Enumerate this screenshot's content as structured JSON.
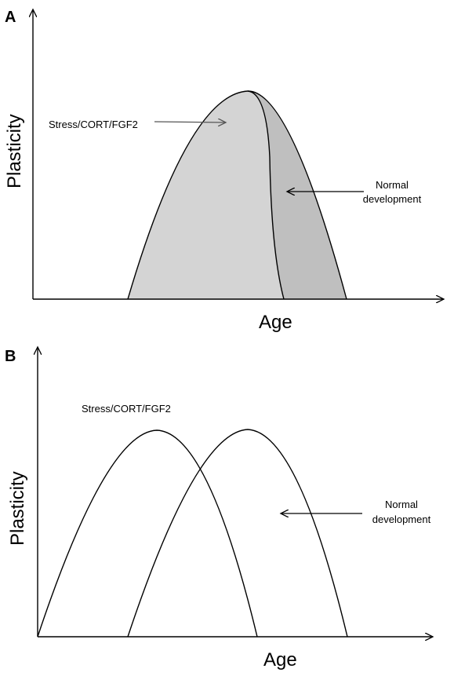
{
  "panel_a": {
    "label": "A",
    "ylabel": "Plasticity",
    "xlabel": "Age",
    "annotation_stress": "Stress/CORT/FGF2",
    "annotation_normal_line1": "Normal",
    "annotation_normal_line2": "development"
  },
  "panel_b": {
    "label": "B",
    "ylabel": "Plasticity",
    "xlabel": "Age",
    "annotation_stress": "Stress/CORT/FGF2",
    "annotation_normal_line1": "Normal",
    "annotation_normal_line2": "development"
  },
  "colors": {
    "fill_light": "#d4d4d4",
    "fill_dark": "#bfbfbf",
    "stroke": "#000000",
    "arrow_gray": "#555555"
  }
}
